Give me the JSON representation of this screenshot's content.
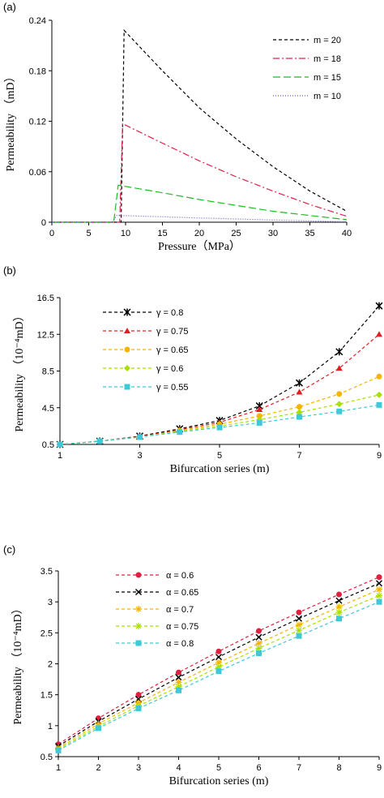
{
  "chart_data": [
    {
      "panel_label": "(a)",
      "type": "line",
      "xlabel": "Pressure（MPa）",
      "ylabel": "Permeability （mD）",
      "xlim": [
        0,
        40
      ],
      "ylim": [
        0,
        0.24
      ],
      "xticks": [
        "0",
        "5",
        "10",
        "15",
        "20",
        "25",
        "30",
        "35",
        "40"
      ],
      "yticks": [
        "0",
        "0.06",
        "0.12",
        "0.18",
        "0.24"
      ],
      "legend_position": "top-right",
      "series": [
        {
          "name": "m = 20",
          "color": "#000000",
          "dash": "4,3",
          "x": [
            0,
            9.4,
            9.8,
            15,
            20,
            25,
            30,
            35,
            40
          ],
          "y": [
            0,
            0,
            0.228,
            0.18,
            0.136,
            0.099,
            0.066,
            0.037,
            0.013
          ]
        },
        {
          "name": "m = 18",
          "color": "#e0204a",
          "dash": "8,3,2,3",
          "x": [
            0,
            9.2,
            9.6,
            15,
            20,
            25,
            30,
            35,
            40
          ],
          "y": [
            0,
            0,
            0.117,
            0.094,
            0.073,
            0.054,
            0.037,
            0.021,
            0.007
          ]
        },
        {
          "name": "m = 15",
          "color": "#22bb22",
          "dash": "9,4",
          "x": [
            0,
            8.4,
            9,
            15,
            20,
            25,
            30,
            35,
            40
          ],
          "y": [
            0,
            0,
            0.044,
            0.035,
            0.027,
            0.02,
            0.013,
            0.008,
            0.003
          ]
        },
        {
          "name": "m = 10",
          "color": "#6a5acd",
          "dash": "1,2",
          "x": [
            0,
            8.2,
            8.8,
            15,
            20,
            25,
            30,
            35,
            40
          ],
          "y": [
            0,
            0,
            0.008,
            0.0065,
            0.005,
            0.004,
            0.0025,
            0.0015,
            0.0005
          ]
        }
      ]
    },
    {
      "panel_label": "(b)",
      "type": "line",
      "xlabel": "Bifurcation  series (m)",
      "ylabel": "Permeability  （10⁻⁴mD）",
      "xlim": [
        1,
        9
      ],
      "ylim": [
        0.5,
        16.5
      ],
      "xticks": [
        "1",
        "3",
        "5",
        "7",
        "9"
      ],
      "yticks": [
        "0.5",
        "4.5",
        "8.5",
        "12.5",
        "16.5"
      ],
      "legend_position": "top-left",
      "x": [
        1,
        2,
        3,
        4,
        5,
        6,
        7,
        8,
        9
      ],
      "series": [
        {
          "name": "γ = 0.8",
          "color": "#000000",
          "marker": "asterisk",
          "values": [
            0.5,
            0.85,
            1.4,
            2.2,
            3.1,
            4.7,
            7.2,
            10.6,
            15.6
          ]
        },
        {
          "name": "γ = 0.75",
          "color": "#e02020",
          "marker": "triangle",
          "values": [
            0.5,
            0.85,
            1.35,
            2.1,
            2.9,
            4.3,
            6.2,
            8.8,
            12.5
          ]
        },
        {
          "name": "γ = 0.65",
          "color": "#f5b400",
          "marker": "circle",
          "values": [
            0.5,
            0.85,
            1.3,
            2.0,
            2.7,
            3.6,
            4.6,
            6.0,
            7.9
          ]
        },
        {
          "name": "γ = 0.6",
          "color": "#a8e000",
          "marker": "diamond",
          "values": [
            0.5,
            0.85,
            1.3,
            1.95,
            2.5,
            3.2,
            4.0,
            4.9,
            5.9
          ]
        },
        {
          "name": "γ = 0.55",
          "color": "#40c8d8",
          "marker": "square",
          "values": [
            0.5,
            0.85,
            1.3,
            1.85,
            2.35,
            2.85,
            3.5,
            4.1,
            4.8
          ]
        }
      ]
    },
    {
      "panel_label": "(c)",
      "type": "line",
      "xlabel": "Bifurcation  series (m)",
      "ylabel": "Permeability  （10⁻⁴mD）",
      "xlim": [
        1,
        9
      ],
      "ylim": [
        0.5,
        3.5
      ],
      "xticks": [
        "1",
        "2",
        "3",
        "4",
        "5",
        "6",
        "7",
        "8",
        "9"
      ],
      "yticks": [
        "0.5",
        "1",
        "1.5",
        "2",
        "2.5",
        "3",
        "3.5"
      ],
      "legend_position": "top-left",
      "x": [
        1,
        2,
        3,
        4,
        5,
        6,
        7,
        8,
        9
      ],
      "series": [
        {
          "name": "α = 0.6",
          "color": "#e02040",
          "marker": "circle",
          "values": [
            0.7,
            1.12,
            1.5,
            1.86,
            2.2,
            2.53,
            2.83,
            3.12,
            3.4
          ]
        },
        {
          "name": "α = 0.65",
          "color": "#000000",
          "marker": "x",
          "values": [
            0.67,
            1.07,
            1.43,
            1.78,
            2.11,
            2.43,
            2.73,
            3.02,
            3.3
          ]
        },
        {
          "name": "α = 0.7",
          "color": "#f5b400",
          "marker": "star",
          "values": [
            0.64,
            1.03,
            1.37,
            1.7,
            2.02,
            2.33,
            2.63,
            2.92,
            3.2
          ]
        },
        {
          "name": "α = 0.75",
          "color": "#a8e000",
          "marker": "star",
          "values": [
            0.62,
            0.99,
            1.32,
            1.63,
            1.95,
            2.25,
            2.54,
            2.83,
            3.1
          ]
        },
        {
          "name": "α = 0.8",
          "color": "#40c8d8",
          "marker": "square",
          "values": [
            0.6,
            0.96,
            1.28,
            1.57,
            1.88,
            2.17,
            2.45,
            2.73,
            3.0
          ]
        }
      ]
    }
  ]
}
